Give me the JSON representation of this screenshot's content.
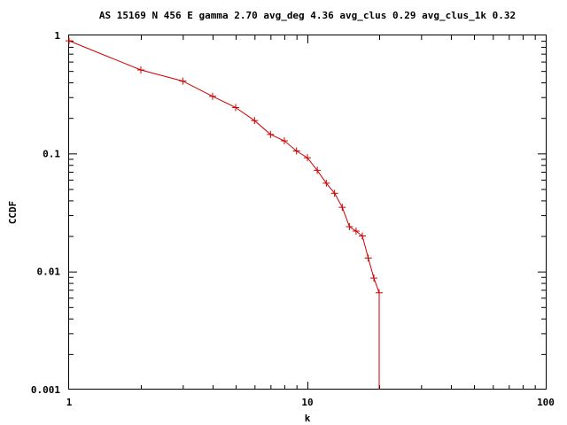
{
  "chart_data": {
    "type": "line",
    "title": "AS 15169 N 456 E gamma 2.70 avg_deg 4.36 avg_clus 0.29 avg_clus_1k 0.32",
    "xlabel": "k",
    "ylabel": "CCDF",
    "xscale": "log",
    "yscale": "log",
    "xlim": [
      1,
      100
    ],
    "ylim": [
      0.001,
      1
    ],
    "xticks": [
      {
        "value": 1,
        "label": "1"
      },
      {
        "value": 10,
        "label": "10"
      },
      {
        "value": 100,
        "label": "100"
      }
    ],
    "yticks": [
      {
        "value": 1,
        "label": "1"
      },
      {
        "value": 0.1,
        "label": "0.1"
      },
      {
        "value": 0.01,
        "label": "0.01"
      },
      {
        "value": 0.001,
        "label": "0.001"
      }
    ],
    "grid": false,
    "legend": "none",
    "color": "#cc0000",
    "series": [
      {
        "x": [
          1,
          2,
          3,
          4,
          5,
          6,
          7,
          8,
          9,
          10,
          11,
          12,
          13,
          14,
          15,
          16,
          17,
          18,
          19,
          20,
          20
        ],
        "y": [
          0.9,
          0.51,
          0.41,
          0.305,
          0.245,
          0.19,
          0.145,
          0.128,
          0.105,
          0.092,
          0.072,
          0.056,
          0.046,
          0.035,
          0.024,
          0.022,
          0.02,
          0.013,
          0.0088,
          0.0066,
          0.001
        ],
        "markers": [
          true,
          true,
          true,
          true,
          true,
          true,
          true,
          true,
          true,
          true,
          true,
          true,
          true,
          true,
          true,
          true,
          true,
          true,
          true,
          true,
          false
        ]
      }
    ]
  }
}
